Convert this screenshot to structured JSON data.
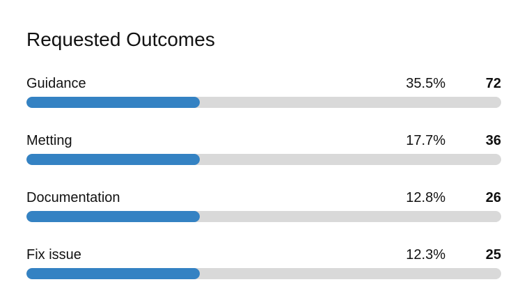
{
  "title": "Requested Outcomes",
  "colors": {
    "bar_fill": "#3482c3",
    "bar_track": "#d9d9d9",
    "text": "#111111"
  },
  "rows": [
    {
      "label": "Guidance",
      "percent": "35.5%",
      "count": "72",
      "bar_fill_percent_rendered": 36.5
    },
    {
      "label": "Metting",
      "percent": "17.7%",
      "count": "36",
      "bar_fill_percent_rendered": 36.5
    },
    {
      "label": "Documentation",
      "percent": "12.8%",
      "count": "26",
      "bar_fill_percent_rendered": 36.5
    },
    {
      "label": "Fix issue",
      "percent": "12.3%",
      "count": "25",
      "bar_fill_percent_rendered": 36.5
    }
  ],
  "chart_data": {
    "type": "bar",
    "orientation": "horizontal",
    "title": "Requested Outcomes",
    "categories": [
      "Guidance",
      "Metting",
      "Documentation",
      "Fix issue"
    ],
    "series": [
      {
        "name": "share_percent",
        "values": [
          35.5,
          17.7,
          12.8,
          12.3
        ],
        "unit": "%"
      },
      {
        "name": "count",
        "values": [
          72,
          36,
          26,
          25
        ]
      }
    ],
    "legend": false,
    "grid": false,
    "layout_note": "each category row shows label left, percent and bold count right-aligned; all four blue fills render at the same ~36.5% of track width"
  }
}
